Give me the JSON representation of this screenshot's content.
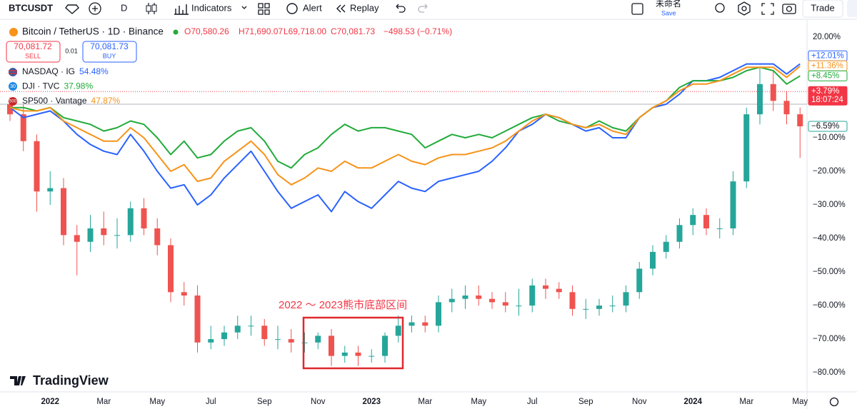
{
  "toolbar": {
    "symbol": "BTCUSDT",
    "interval": "D",
    "indicators": "Indicators",
    "alert": "Alert",
    "replay": "Replay",
    "layout_name": "未命名",
    "save": "Save",
    "trade": "Trade"
  },
  "legend": {
    "title": "Bitcoin / TetherUS · 1D · Binance",
    "open": "O70,580.26",
    "high": "H71,690.07",
    "low": "L69,718.00",
    "close": "C70,081.73",
    "change": "−498.53 (−0.71%)",
    "sell_price": "70,081.72",
    "sell": "SELL",
    "spread": "0.01",
    "buy_price": "70,081.73",
    "buy": "BUY",
    "dji_badge": "30",
    "sp_badge": "500"
  },
  "watermark": "TradingView",
  "chart_data": {
    "type": "candlestick",
    "categories": [
      null,
      null,
      null,
      "2022",
      null,
      null,
      null,
      "Mar",
      null,
      null,
      null,
      "May",
      null,
      null,
      null,
      "Jul",
      null,
      null,
      null,
      "Sep",
      null,
      null,
      null,
      "Nov",
      null,
      null,
      null,
      "2023",
      null,
      null,
      null,
      "Mar",
      null,
      null,
      null,
      "May",
      null,
      null,
      null,
      "Jul",
      null,
      null,
      null,
      "Sep",
      null,
      null,
      null,
      "Nov",
      null,
      null,
      null,
      "2024",
      null,
      null,
      null,
      "Mar",
      null,
      null,
      null,
      "May"
    ],
    "open": [
      0,
      -3,
      -11,
      -26,
      -25,
      -39,
      -41,
      -37,
      -39,
      -39,
      -31,
      -37,
      -42,
      -56,
      -57,
      -71,
      -70,
      -68,
      -66,
      -66,
      -70,
      -70,
      -71,
      -71,
      -69,
      -75,
      -74,
      -75,
      -75,
      -69,
      -66,
      -65,
      -66,
      -59,
      -58,
      -57,
      -58,
      -59,
      -60,
      -60,
      -54,
      -55,
      -56,
      -61,
      -61,
      -60,
      -60,
      -56,
      -49,
      -44,
      -41,
      -36,
      -33,
      -37,
      -37,
      -23,
      -3,
      6,
      1,
      -3
    ],
    "high": [
      2,
      0,
      -9,
      -20,
      -22,
      -36,
      -33,
      -32,
      -34,
      -29,
      -28,
      -34,
      -40,
      -53,
      -54,
      -66,
      -66,
      -63,
      -63,
      -64,
      -66,
      -67,
      -68,
      -68,
      -67,
      -72,
      -72,
      -73,
      -68,
      -63,
      -63,
      -63,
      -57,
      -55,
      -54,
      -54,
      -56,
      -56,
      -55,
      -52,
      -52,
      -53,
      -54,
      -58,
      -58,
      -57,
      -54,
      -47,
      -42,
      -39,
      -34,
      -31,
      -31,
      -34,
      -20,
      -1,
      11,
      10,
      4,
      -1
    ],
    "low": [
      -5,
      -14,
      -32,
      -30,
      -42,
      -51,
      -44,
      -42,
      -43,
      -41,
      -39,
      -45,
      -59,
      -60,
      -74,
      -73,
      -72,
      -70,
      -69,
      -72,
      -73,
      -74,
      -74,
      -73,
      -78,
      -77,
      -78,
      -77,
      -77,
      -71,
      -68,
      -68,
      -68,
      -62,
      -61,
      -60,
      -61,
      -62,
      -63,
      -62,
      -58,
      -58,
      -63,
      -64,
      -63,
      -62,
      -62,
      -58,
      -51,
      -46,
      -43,
      -39,
      -39,
      -40,
      -39,
      -25,
      -6,
      -2,
      -6,
      -16
    ],
    "close": [
      -3,
      -11,
      -26,
      -25,
      -39,
      -41,
      -37,
      -39,
      -39,
      -31,
      -37,
      -42,
      -56,
      -57,
      -71,
      -70,
      -68,
      -66,
      -66,
      -70,
      -70,
      -71,
      -71,
      -69,
      -75,
      -74,
      -75,
      -75,
      -69,
      -66,
      -65,
      -66,
      -59,
      -58,
      -57,
      -58,
      -59,
      -60,
      -60,
      -54,
      -55,
      -56,
      -61,
      -61,
      -60,
      -60,
      -56,
      -49,
      -44,
      -41,
      -36,
      -33,
      -37,
      -37,
      -23,
      -3,
      6,
      1,
      -3,
      -6.59
    ],
    "close_label": "−6.59%",
    "up_color": "#26a69a",
    "down_color": "#ef5350",
    "series": [
      {
        "name": "NASDAQ · IG",
        "change_label": "54.48%",
        "last_label": "+12.01%",
        "color": "#2962ff",
        "values": [
          -1,
          -4,
          -3,
          -2,
          -5,
          -9,
          -12,
          -14,
          -15,
          -9,
          -14,
          -20,
          -25,
          -24,
          -30,
          -27,
          -22,
          -18,
          -14,
          -20,
          -26,
          -31,
          -29,
          -27,
          -32,
          -26,
          -29,
          -31,
          -27,
          -23,
          -25,
          -26,
          -23,
          -22,
          -21,
          -20,
          -17,
          -13,
          -8,
          -6,
          -3,
          -4,
          -6,
          -8,
          -7,
          -10,
          -10,
          -4,
          -1,
          0,
          3,
          7,
          7,
          8,
          10,
          12,
          12,
          12,
          9,
          12.01
        ]
      },
      {
        "name": "DJI · TVC",
        "change_label": "37.98%",
        "last_label": "+8.45%",
        "color": "#22ab3a",
        "values": [
          -1,
          -1,
          -2,
          -1,
          -4,
          -5,
          -6,
          -8,
          -7,
          -5,
          -6,
          -10,
          -15,
          -11,
          -16,
          -15,
          -11,
          -8,
          -7,
          -11,
          -17,
          -19,
          -15,
          -13,
          -9,
          -6,
          -8,
          -7,
          -7,
          -8,
          -9,
          -13,
          -11,
          -9,
          -10,
          -9,
          -10,
          -8,
          -6,
          -4,
          -3,
          -5,
          -6,
          -7,
          -5,
          -7,
          -8,
          -4,
          -1,
          1,
          5,
          7,
          7,
          7,
          8,
          10,
          11,
          10,
          6,
          8.45
        ]
      },
      {
        "name": "SP500 · Vantage",
        "change_label": "47.87%",
        "last_label": "+11.36%",
        "color": "#f7931a",
        "values": [
          -1,
          -2,
          -2,
          -1,
          -5,
          -7,
          -9,
          -11,
          -11,
          -7,
          -10,
          -15,
          -20,
          -18,
          -23,
          -22,
          -17,
          -14,
          -11,
          -15,
          -21,
          -24,
          -22,
          -19,
          -20,
          -17,
          -19,
          -19,
          -17,
          -15,
          -17,
          -18,
          -16,
          -15,
          -15,
          -14,
          -13,
          -11,
          -8,
          -5,
          -3,
          -4,
          -6,
          -7,
          -6,
          -8,
          -9,
          -4,
          -1,
          1,
          4,
          6,
          6,
          7,
          9,
          11,
          11,
          11,
          8,
          11.36
        ]
      }
    ],
    "price_line": {
      "value": 3.79,
      "label": "+3.79%",
      "countdown": "18:07:24",
      "color": "#f23645"
    },
    "baseline": 0,
    "ylim": [
      -85.5,
      25.1
    ],
    "yticks": [
      {
        "value": 20,
        "label": "20.00%"
      },
      {
        "value": -10,
        "label": "−10.00%"
      },
      {
        "value": -20,
        "label": "−20.00%"
      },
      {
        "value": -30,
        "label": "−30.00%"
      },
      {
        "value": -40,
        "label": "−40.00%"
      },
      {
        "value": -50,
        "label": "−50.00%"
      },
      {
        "value": -60,
        "label": "−60.00%"
      },
      {
        "value": -70,
        "label": "−70.00%"
      },
      {
        "value": -80,
        "label": "−80.00%"
      }
    ],
    "annotation": "2022 ～ 2023熊市底部区间"
  }
}
